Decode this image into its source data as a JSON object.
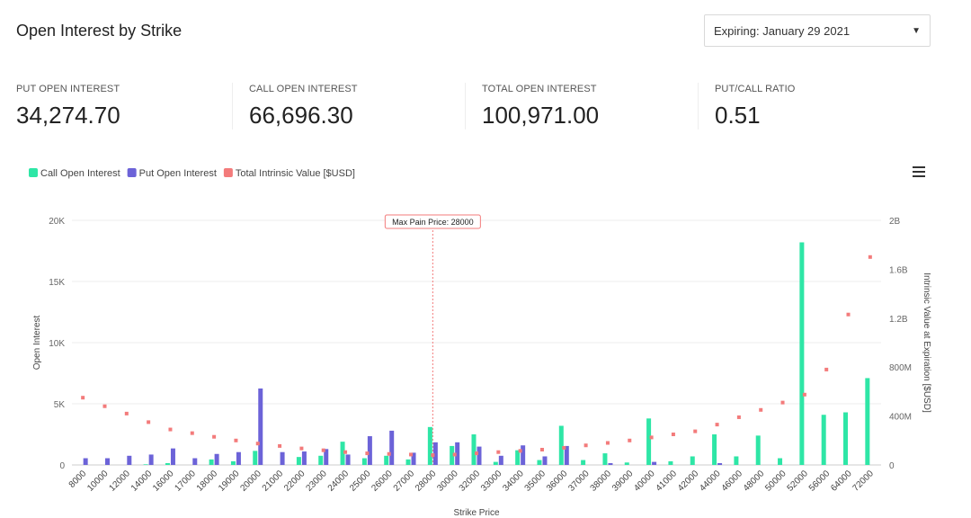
{
  "header": {
    "title": "Open Interest by Strike",
    "expiry_label": "Expiring: January 29 2021"
  },
  "stats": [
    {
      "label": "PUT OPEN INTEREST",
      "value": "34,274.70"
    },
    {
      "label": "CALL OPEN INTEREST",
      "value": "66,696.30"
    },
    {
      "label": "TOTAL OPEN INTEREST",
      "value": "100,971.00"
    },
    {
      "label": "PUT/CALL RATIO",
      "value": "0.51"
    }
  ],
  "icons": {
    "menu": "hamburger-menu-icon",
    "dropdown_caret": "caret-down-icon"
  },
  "chart_data": {
    "type": "bar",
    "colors": {
      "call": "#2ee6a6",
      "put": "#6c63d8",
      "intrinsic": "#f37b7b",
      "max_pain": "#f37b7b"
    },
    "legend": [
      {
        "name": "Call Open Interest",
        "color": "#2ee6a6"
      },
      {
        "name": "Put Open Interest",
        "color": "#6c63d8"
      },
      {
        "name": "Total Intrinsic Value [$USD]",
        "color": "#f37b7b"
      }
    ],
    "legend_position": "top-left",
    "ylabel": "Open Interest",
    "y2label": "Intrinsic Value at Expiration [$USD]",
    "xlabel": "Strike Price",
    "ylim": [
      0,
      20000
    ],
    "y_ticks": [
      "0",
      "5K",
      "10K",
      "15K",
      "20K"
    ],
    "y2lim": [
      0,
      2000000000
    ],
    "y2_ticks": [
      "0",
      "400M",
      "800M",
      "1.2B",
      "1.6B",
      "2B"
    ],
    "max_pain_label": "Max Pain Price: 28000",
    "max_pain_strike": "28000",
    "categories": [
      "8000",
      "10000",
      "12000",
      "14000",
      "16000",
      "17000",
      "18000",
      "19000",
      "20000",
      "21000",
      "22000",
      "23000",
      "24000",
      "25000",
      "26000",
      "27000",
      "28000",
      "30000",
      "32000",
      "33000",
      "34000",
      "35000",
      "36000",
      "37000",
      "38000",
      "39000",
      "40000",
      "41000",
      "42000",
      "44000",
      "46000",
      "48000",
      "50000",
      "52000",
      "56000",
      "64000",
      "72000"
    ],
    "series": [
      {
        "name": "Call Open Interest",
        "values": [
          0,
          0,
          0,
          50,
          150,
          0,
          450,
          300,
          1150,
          0,
          650,
          750,
          1900,
          550,
          750,
          450,
          3100,
          1550,
          2500,
          250,
          1200,
          400,
          3200,
          400,
          950,
          200,
          3800,
          300,
          700,
          2500,
          700,
          2400,
          550,
          18200,
          4100,
          4300,
          7100
        ]
      },
      {
        "name": "Put Open Interest",
        "values": [
          550,
          550,
          750,
          850,
          1350,
          550,
          900,
          1050,
          6250,
          1050,
          1100,
          1300,
          850,
          2350,
          2800,
          1000,
          1850,
          1850,
          1500,
          750,
          1600,
          700,
          1550,
          0,
          150,
          0,
          250,
          0,
          0,
          150,
          0,
          0,
          0,
          0,
          0,
          0,
          0
        ]
      },
      {
        "name": "Total Intrinsic Value [$USD]",
        "values": [
          550000000,
          480000000,
          420000000,
          350000000,
          290000000,
          260000000,
          230000000,
          200000000,
          175000000,
          155000000,
          135000000,
          120000000,
          105000000,
          95000000,
          90000000,
          85000000,
          80000000,
          85000000,
          95000000,
          105000000,
          115000000,
          125000000,
          140000000,
          160000000,
          180000000,
          200000000,
          225000000,
          250000000,
          275000000,
          330000000,
          390000000,
          450000000,
          510000000,
          575000000,
          780000000,
          1230000000,
          1700000000
        ]
      }
    ]
  }
}
